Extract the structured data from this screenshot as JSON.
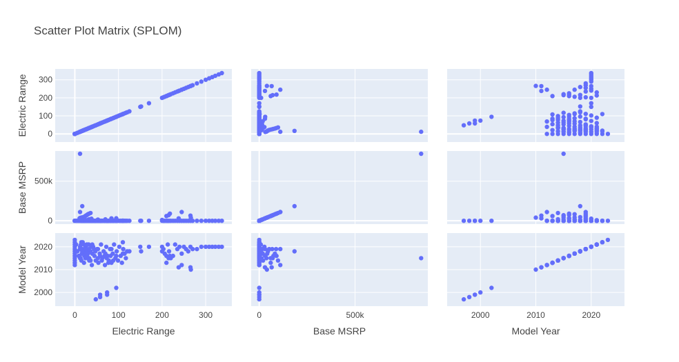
{
  "chart_data": {
    "type": "scatter",
    "subtype": "scatter-matrix",
    "title": "Scatter Plot Matrix (SPLOM)",
    "dimensions": [
      "Electric Range",
      "Base MSRP",
      "Model Year"
    ],
    "axes": {
      "Electric Range": {
        "range": [
          -45,
          360
        ],
        "ticks": [
          0,
          100,
          200,
          300
        ],
        "tick_labels": [
          "0",
          "100",
          "200",
          "300"
        ]
      },
      "Base MSRP": {
        "range": [
          -42000,
          880000
        ],
        "ticks": [
          0,
          500000
        ],
        "tick_labels": [
          "0",
          "500k"
        ]
      },
      "Model Year": {
        "range": [
          1994,
          2026
        ],
        "ticks": [
          2000,
          2010,
          2020
        ],
        "tick_labels": [
          "2000",
          "2010",
          "2020"
        ]
      }
    },
    "marker_color": "#636efa",
    "plot_background": "#e5ecf6",
    "grid": true,
    "legend": "none",
    "records": [
      [
        0,
        0,
        2023
      ],
      [
        0,
        0,
        2022
      ],
      [
        0,
        0,
        2021
      ],
      [
        0,
        0,
        2020
      ],
      [
        0,
        0,
        2019
      ],
      [
        0,
        0,
        2018
      ],
      [
        0,
        0,
        2017
      ],
      [
        0,
        0,
        2016
      ],
      [
        0,
        0,
        2015
      ],
      [
        0,
        0,
        2014
      ],
      [
        0,
        0,
        2013
      ],
      [
        0,
        0,
        2012
      ],
      [
        3,
        0,
        2021
      ],
      [
        6,
        0,
        2018
      ],
      [
        9,
        0,
        2016
      ],
      [
        12,
        0,
        2020
      ],
      [
        15,
        0,
        2014
      ],
      [
        18,
        0,
        2022
      ],
      [
        21,
        0,
        2013
      ],
      [
        24,
        0,
        2019
      ],
      [
        27,
        0,
        2017
      ],
      [
        30,
        0,
        2021
      ],
      [
        33,
        0,
        2015
      ],
      [
        36,
        0,
        2018
      ],
      [
        39,
        0,
        2012
      ],
      [
        42,
        0,
        2020
      ],
      [
        45,
        0,
        2016
      ],
      [
        48,
        0,
        2014
      ],
      [
        51,
        0,
        2019
      ],
      [
        54,
        0,
        2013
      ],
      [
        57,
        0,
        2017
      ],
      [
        60,
        0,
        2021
      ],
      [
        63,
        0,
        2015
      ],
      [
        66,
        0,
        2018
      ],
      [
        69,
        0,
        2012
      ],
      [
        72,
        0,
        2020
      ],
      [
        75,
        0,
        2016
      ],
      [
        78,
        0,
        2014
      ],
      [
        81,
        0,
        2019
      ],
      [
        84,
        0,
        2013
      ],
      [
        87,
        0,
        2017
      ],
      [
        90,
        0,
        2021
      ],
      [
        93,
        0,
        2015
      ],
      [
        96,
        0,
        2018
      ],
      [
        99,
        0,
        2014
      ],
      [
        102,
        0,
        2020
      ],
      [
        105,
        0,
        2016
      ],
      [
        108,
        0,
        2013
      ],
      [
        111,
        0,
        2019
      ],
      [
        114,
        0,
        2017
      ],
      [
        117,
        0,
        2015
      ],
      [
        120,
        0,
        2018
      ],
      [
        125,
        0,
        2018
      ],
      [
        150,
        0,
        2020
      ],
      [
        152,
        0,
        2018
      ],
      [
        170,
        0,
        2020
      ],
      [
        200,
        0,
        2020
      ],
      [
        203,
        0,
        2019
      ],
      [
        206,
        0,
        2017
      ],
      [
        210,
        0,
        2016
      ],
      [
        213,
        0,
        2021
      ],
      [
        216,
        0,
        2018
      ],
      [
        220,
        0,
        2015
      ],
      [
        225,
        0,
        2016
      ],
      [
        230,
        0,
        2021
      ],
      [
        235,
        0,
        2019
      ],
      [
        240,
        0,
        2020
      ],
      [
        245,
        0,
        2017
      ],
      [
        250,
        0,
        2020
      ],
      [
        255,
        0,
        2019
      ],
      [
        260,
        0,
        2018
      ],
      [
        265,
        0,
        2020
      ],
      [
        270,
        0,
        2019
      ],
      [
        280,
        0,
        2019
      ],
      [
        290,
        0,
        2020
      ],
      [
        300,
        0,
        2020
      ],
      [
        308,
        0,
        2020
      ],
      [
        315,
        0,
        2020
      ],
      [
        322,
        0,
        2020
      ],
      [
        330,
        0,
        2020
      ],
      [
        337,
        0,
        2020
      ],
      [
        15,
        0,
        2022
      ],
      [
        18,
        0,
        2019
      ],
      [
        20,
        0,
        2021
      ],
      [
        22,
        0,
        2016
      ],
      [
        25,
        0,
        2020
      ],
      [
        28,
        0,
        2018
      ],
      [
        32,
        0,
        2021
      ],
      [
        35,
        0,
        2014
      ],
      [
        38,
        0,
        2020
      ],
      [
        40,
        0,
        2017
      ],
      [
        44,
        0,
        2019
      ],
      [
        47,
        0,
        2018
      ],
      [
        53,
        0,
        2015
      ],
      [
        58,
        0,
        2016
      ],
      [
        62,
        0,
        2014
      ],
      [
        68,
        0,
        2016
      ],
      [
        73,
        0,
        2015
      ],
      [
        77,
        0,
        2013
      ],
      [
        82,
        0,
        2016
      ],
      [
        88,
        0,
        2014
      ],
      [
        14,
        1000,
        2021
      ],
      [
        18,
        1500,
        2017
      ],
      [
        21,
        12000,
        2017
      ],
      [
        24,
        3000,
        2018
      ],
      [
        27,
        5000,
        2021
      ],
      [
        30,
        12000,
        2015
      ],
      [
        33,
        20000,
        2014
      ],
      [
        38,
        27000,
        2020
      ],
      [
        12,
        110000,
        2019
      ],
      [
        25,
        5000,
        2015
      ],
      [
        40,
        8000,
        2021
      ],
      [
        53,
        15000,
        2019
      ],
      [
        70,
        18000,
        2017
      ],
      [
        84,
        30000,
        2019
      ],
      [
        95,
        31000,
        2016
      ],
      [
        110,
        2000,
        2017
      ],
      [
        11,
        32000,
        2016
      ],
      [
        13,
        38000,
        2015
      ],
      [
        16,
        42000,
        2017
      ],
      [
        19,
        46000,
        2018
      ],
      [
        22,
        52000,
        2019
      ],
      [
        24,
        60000,
        2015
      ],
      [
        26,
        68000,
        2019
      ],
      [
        28,
        74000,
        2016
      ],
      [
        30,
        82000,
        2017
      ],
      [
        32,
        88000,
        2019
      ],
      [
        36,
        98000,
        2014
      ],
      [
        17,
        184000,
        2018
      ],
      [
        12,
        845000,
        2015
      ],
      [
        210,
        60000,
        2013
      ],
      [
        215,
        70000,
        2015
      ],
      [
        218,
        90000,
        2016
      ],
      [
        245,
        110000,
        2012
      ],
      [
        265,
        65000,
        2011
      ],
      [
        266,
        40000,
        2010
      ],
      [
        238,
        30000,
        2011
      ],
      [
        200,
        10000,
        2018
      ],
      [
        48,
        0,
        1997
      ],
      [
        58,
        0,
        1999
      ],
      [
        74,
        0,
        2000
      ],
      [
        58,
        0,
        1998
      ],
      [
        95,
        0,
        2002
      ],
      [
        74,
        0,
        1999
      ],
      [
        110,
        0,
        2022
      ]
    ]
  }
}
